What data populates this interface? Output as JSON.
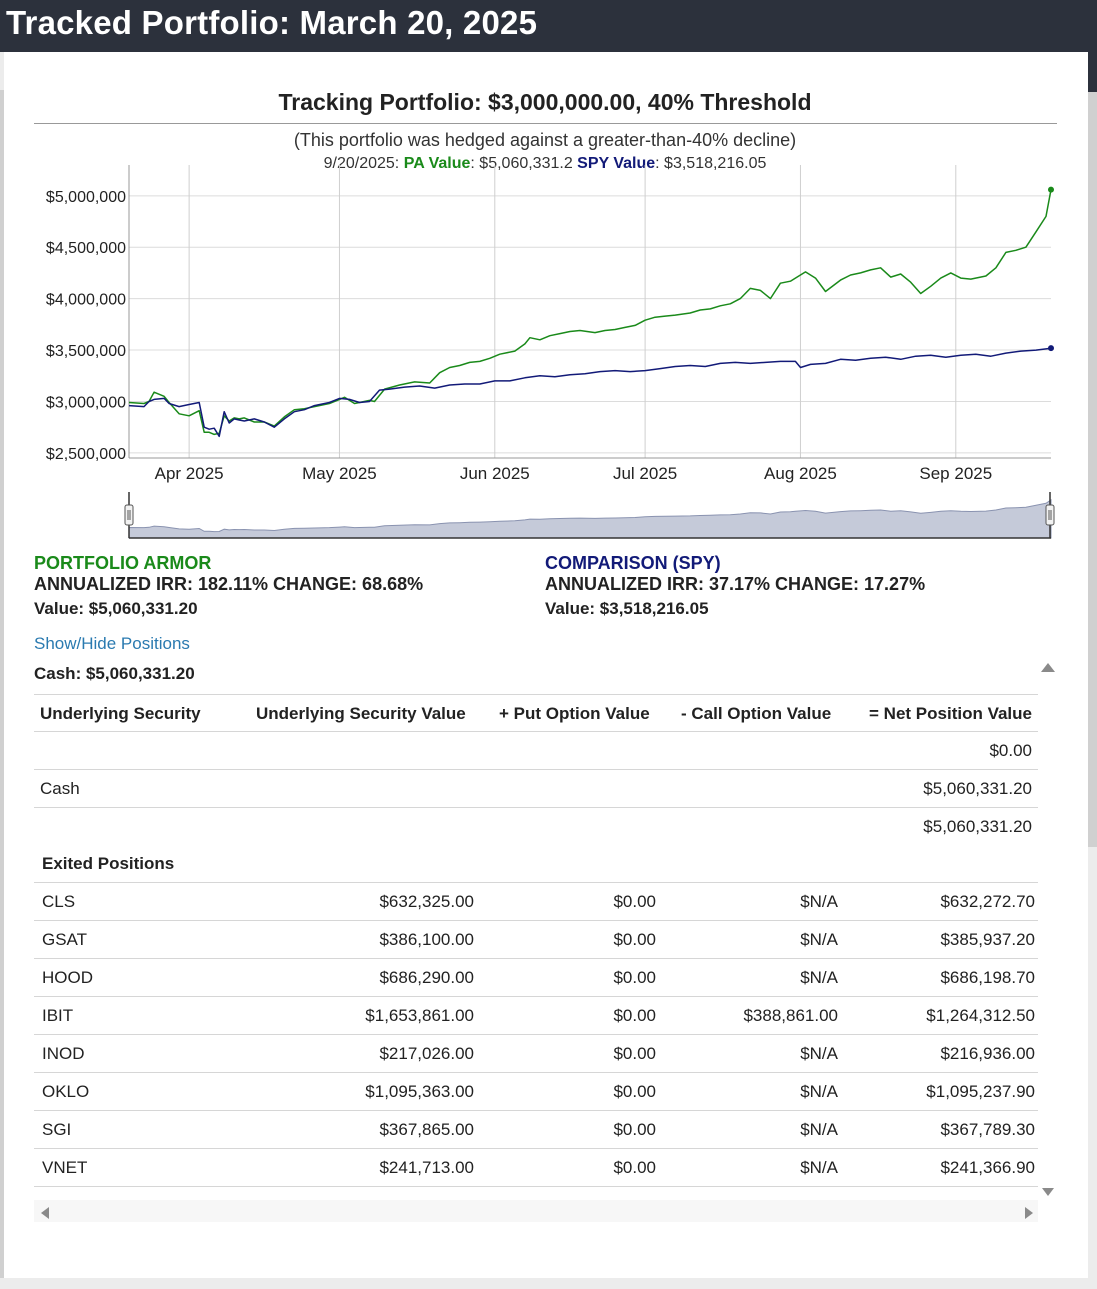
{
  "page": {
    "title": "Tracked Portfolio: March 20, 2025"
  },
  "chart_header": {
    "title": "Tracking Portfolio: $3,000,000.00, 40% Threshold",
    "subtitle": "(This portfolio was hedged against a greater-than-40% decline)",
    "date": "9/20/2025:",
    "pa_label": "PA Value",
    "pa_value": ": $5,060,331.2",
    "spy_label": "SPY Value",
    "spy_value": ": $3,518,216.05"
  },
  "chart_data": {
    "type": "line",
    "title": "Tracking Portfolio: $3,000,000.00, 40% Threshold",
    "xlabel": "",
    "ylabel": "",
    "x_ticks": [
      "Apr 2025",
      "May 2025",
      "Jun 2025",
      "Jul 2025",
      "Aug 2025",
      "Sep 2025"
    ],
    "x_tick_days": [
      12,
      42,
      73,
      103,
      134,
      165
    ],
    "y_ticks": [
      "$2,500,000",
      "$3,000,000",
      "$3,500,000",
      "$4,000,000",
      "$4,500,000",
      "$5,000,000"
    ],
    "y_tick_values": [
      2500000,
      3000000,
      3500000,
      4000000,
      4500000,
      5000000
    ],
    "xlim_days": [
      0,
      184
    ],
    "ylim": [
      2450000,
      5300000
    ],
    "grid": true,
    "series": [
      {
        "name": "PA Value",
        "color": "#1a8a1a",
        "x_days": [
          0,
          3,
          4,
          5,
          7,
          8,
          10,
          12,
          14,
          15,
          16,
          17,
          18,
          19,
          20,
          21,
          22,
          23,
          25,
          27,
          29,
          31,
          33,
          35,
          37,
          40,
          42,
          43,
          45,
          46,
          48,
          49,
          51,
          54,
          57,
          60,
          62,
          64,
          66,
          68,
          70,
          72,
          74,
          77,
          79,
          80,
          82,
          84,
          86,
          88,
          90,
          93,
          95,
          97,
          99,
          101,
          103,
          105,
          107,
          109,
          112,
          114,
          116,
          118,
          120,
          122,
          124,
          126,
          128,
          130,
          132,
          133,
          135,
          137,
          139,
          142,
          144,
          146,
          148,
          150,
          152,
          154,
          156,
          158,
          160,
          162,
          164,
          166,
          168,
          171,
          173,
          175,
          177,
          179,
          181,
          183,
          184
        ],
        "values": [
          2990000,
          2980000,
          3000000,
          3090000,
          3050000,
          2990000,
          2880000,
          2860000,
          2910000,
          2700000,
          2700000,
          2680000,
          2690000,
          2860000,
          2810000,
          2840000,
          2830000,
          2840000,
          2800000,
          2800000,
          2760000,
          2850000,
          2920000,
          2930000,
          2950000,
          2980000,
          3020000,
          3040000,
          2980000,
          2990000,
          3010000,
          3000000,
          3120000,
          3160000,
          3190000,
          3180000,
          3280000,
          3330000,
          3350000,
          3380000,
          3390000,
          3420000,
          3460000,
          3490000,
          3560000,
          3620000,
          3600000,
          3640000,
          3660000,
          3680000,
          3690000,
          3670000,
          3690000,
          3700000,
          3720000,
          3740000,
          3790000,
          3820000,
          3830000,
          3840000,
          3860000,
          3890000,
          3900000,
          3930000,
          3950000,
          4000000,
          4100000,
          4080000,
          4000000,
          4150000,
          4170000,
          4200000,
          4260000,
          4200000,
          4070000,
          4180000,
          4230000,
          4250000,
          4280000,
          4300000,
          4210000,
          4240000,
          4160000,
          4050000,
          4120000,
          4200000,
          4250000,
          4200000,
          4190000,
          4220000,
          4300000,
          4450000,
          4470000,
          4500000,
          4650000,
          4800000,
          5060331
        ]
      },
      {
        "name": "SPY Value",
        "color": "#121a78",
        "x_days": [
          0,
          3,
          4,
          5,
          7,
          8,
          10,
          12,
          14,
          15,
          16,
          17,
          18,
          19,
          20,
          21,
          22,
          23,
          25,
          27,
          29,
          31,
          33,
          35,
          37,
          40,
          42,
          44,
          46,
          48,
          50,
          52,
          55,
          58,
          61,
          64,
          67,
          70,
          73,
          76,
          79,
          82,
          85,
          88,
          91,
          94,
          97,
          100,
          103,
          106,
          109,
          112,
          115,
          118,
          121,
          124,
          127,
          130,
          133,
          134,
          136,
          139,
          142,
          145,
          148,
          151,
          154,
          157,
          160,
          163,
          166,
          169,
          172,
          175,
          178,
          181,
          184
        ],
        "values": [
          2960000,
          2950000,
          3000000,
          3020000,
          3030000,
          2980000,
          2950000,
          2970000,
          2990000,
          2750000,
          2730000,
          2740000,
          2660000,
          2900000,
          2790000,
          2830000,
          2820000,
          2810000,
          2830000,
          2800000,
          2750000,
          2830000,
          2900000,
          2920000,
          2960000,
          2990000,
          3030000,
          3020000,
          2990000,
          3000000,
          3110000,
          3120000,
          3140000,
          3150000,
          3130000,
          3160000,
          3170000,
          3170000,
          3200000,
          3200000,
          3230000,
          3250000,
          3240000,
          3260000,
          3270000,
          3290000,
          3300000,
          3290000,
          3300000,
          3320000,
          3340000,
          3350000,
          3340000,
          3370000,
          3380000,
          3370000,
          3380000,
          3390000,
          3390000,
          3330000,
          3360000,
          3370000,
          3410000,
          3400000,
          3420000,
          3430000,
          3410000,
          3440000,
          3450000,
          3430000,
          3450000,
          3460000,
          3440000,
          3470000,
          3490000,
          3500000,
          3518216
        ]
      }
    ]
  },
  "portfolio_armor": {
    "heading": "PORTFOLIO ARMOR",
    "irr_line": "ANNUALIZED IRR: 182.11% CHANGE: 68.68%",
    "value_line": "Value: $5,060,331.20"
  },
  "comparison": {
    "heading": "COMPARISON (SPY)",
    "irr_line": "ANNUALIZED IRR: 37.17% CHANGE: 17.27%",
    "value_line": "Value: $3,518,216.05"
  },
  "positions": {
    "toggle_label": "Show/Hide Positions",
    "cash_line": "Cash: $5,060,331.20",
    "headers": [
      "Underlying Security",
      "Underlying Security Value",
      "+ Put Option Value",
      "- Call Option Value",
      "= Net Position Value"
    ],
    "rows": [
      {
        "name": "",
        "net": "$0.00"
      },
      {
        "name": "Cash",
        "net": "$5,060,331.20"
      },
      {
        "name": "",
        "net": "$5,060,331.20"
      }
    ]
  },
  "exited": {
    "heading": "Exited Positions",
    "rows": [
      {
        "ticker": "CLS",
        "underlying": "$632,325.00",
        "put": "$0.00",
        "call": "$N/A",
        "net": "$632,272.70"
      },
      {
        "ticker": "GSAT",
        "underlying": "$386,100.00",
        "put": "$0.00",
        "call": "$N/A",
        "net": "$385,937.20"
      },
      {
        "ticker": "HOOD",
        "underlying": "$686,290.00",
        "put": "$0.00",
        "call": "$N/A",
        "net": "$686,198.70"
      },
      {
        "ticker": "IBIT",
        "underlying": "$1,653,861.00",
        "put": "$0.00",
        "call": "$388,861.00",
        "net": "$1,264,312.50"
      },
      {
        "ticker": "INOD",
        "underlying": "$217,026.00",
        "put": "$0.00",
        "call": "$N/A",
        "net": "$216,936.00"
      },
      {
        "ticker": "OKLO",
        "underlying": "$1,095,363.00",
        "put": "$0.00",
        "call": "$N/A",
        "net": "$1,095,237.90"
      },
      {
        "ticker": "SGI",
        "underlying": "$367,865.00",
        "put": "$0.00",
        "call": "$N/A",
        "net": "$367,789.30"
      },
      {
        "ticker": "VNET",
        "underlying": "$241,713.00",
        "put": "$0.00",
        "call": "$N/A",
        "net": "$241,366.90"
      }
    ]
  }
}
